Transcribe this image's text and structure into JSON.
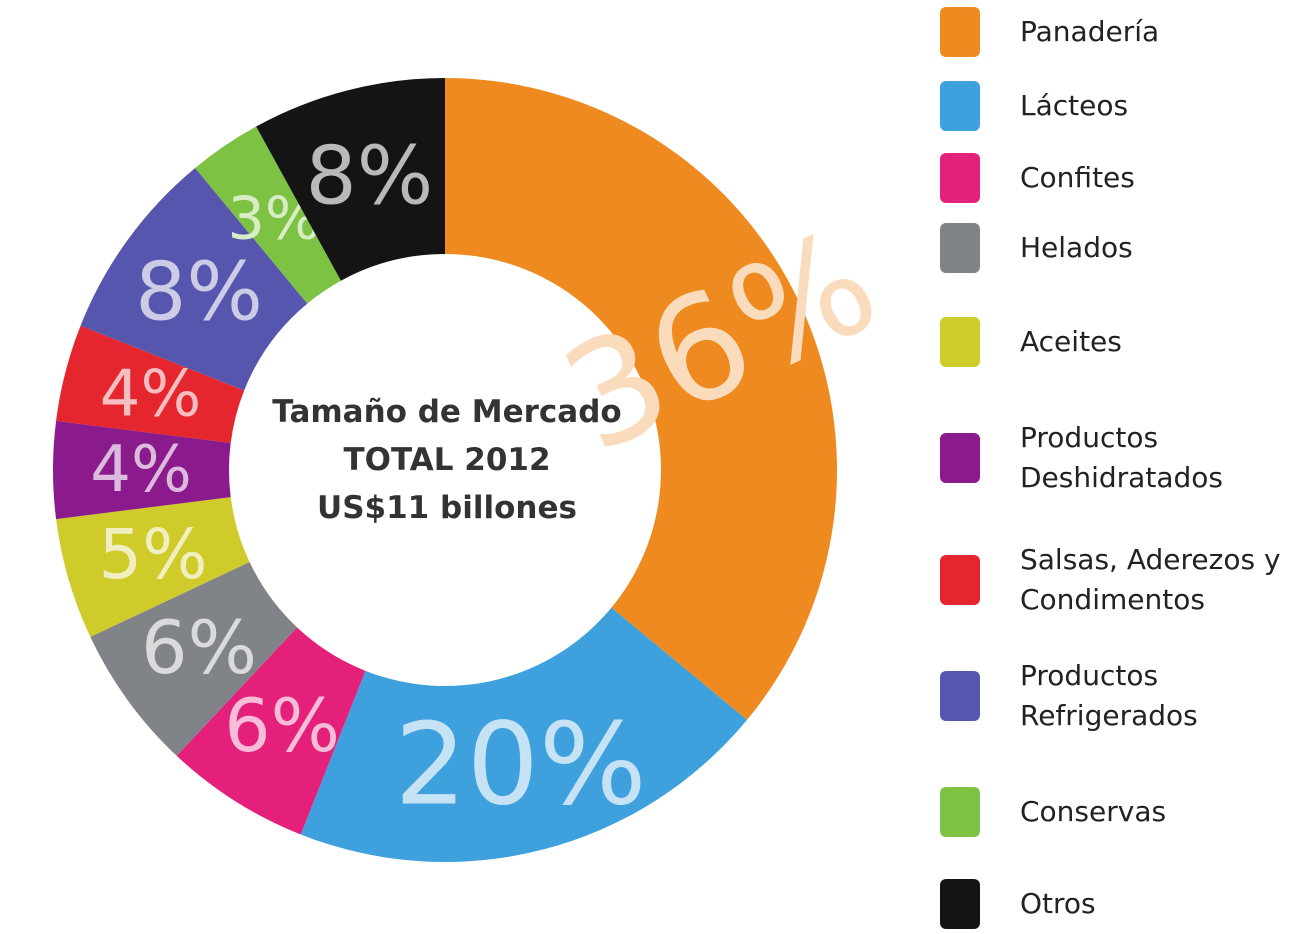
{
  "chart_data": {
    "type": "donut",
    "center_text": [
      "Tamaño de Mercado",
      "TOTAL 2012",
      "US$11 billones"
    ],
    "categories": [
      "Panadería",
      "Lácteos",
      "Confites",
      "Helados",
      "Aceites",
      "Productos Deshidratados",
      "Salsas, Aderezos y Condimentos",
      "Productos Refrigerados",
      "Conservas",
      "Otros"
    ],
    "values": [
      36,
      20,
      6,
      6,
      5,
      4,
      4,
      8,
      3,
      8
    ],
    "value_labels": [
      "36%",
      "20%",
      "6%",
      "6%",
      "5%",
      "4%",
      "4%",
      "8%",
      "3%",
      "8%"
    ],
    "colors": [
      "#ee8a1f",
      "#3ea0dc",
      "#e5207a",
      "#808387",
      "#cfcb2a",
      "#8b1a8c",
      "#e5262f",
      "#5656ae",
      "#7dc242",
      "#141414"
    ]
  }
}
